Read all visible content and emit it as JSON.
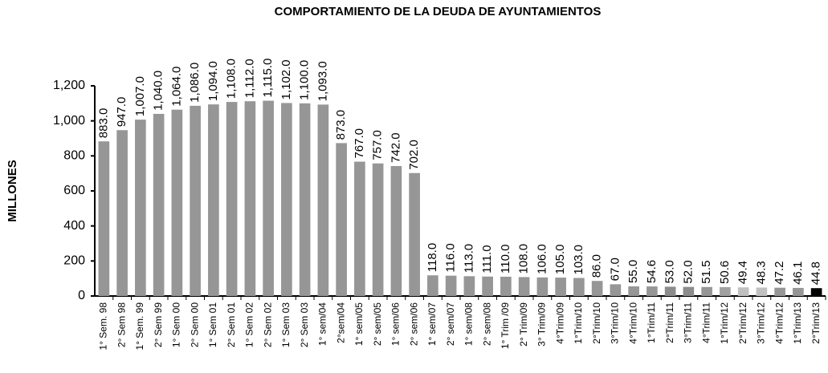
{
  "chart_data": {
    "type": "bar",
    "title": "COMPORTAMIENTO DE LA DEUDA DE AYUNTAMIENTOS",
    "y_label": "MILLONES",
    "categories": [
      "1° Sem. 98",
      "2° Sem 98",
      "1° Sem. 99",
      "2° Sem 99",
      "1° Sem 00",
      "2° Sem 00",
      "1° Sem 01",
      "2° Sem 01",
      "1° Sem 02",
      "2° Sem 02",
      "1° Sem 03",
      "2° Sem 03",
      "1° sem/04",
      "2°sem/04",
      "1° sem/05",
      "2° sem/05",
      "1° sem/06",
      "2° sem/06",
      "1° sem/07",
      "2° sem/07",
      "1° sem/08",
      "2° sem/08",
      "1° Trim /09",
      "2° Trim/09",
      "3° Trim/09",
      "4°Trim/09",
      "1°Trim/10",
      "2°Trim/10",
      "3°Trim/10",
      "4°Trim/10",
      "1°Trim/11",
      "2°Trim/11",
      "3°Trim/11",
      "4°Trim/11",
      "1°Trim/12",
      "2°Trim/12",
      "3°Trim/12",
      "4°Trim/12",
      "1°Trim/13",
      "2°Trim/13"
    ],
    "values": [
      883,
      947,
      1007,
      1040,
      1064,
      1086,
      1094,
      1108,
      1112,
      1115,
      1102,
      1100,
      1093,
      873,
      767,
      757,
      742,
      702,
      118,
      116,
      113,
      111,
      110,
      108,
      106,
      105,
      103,
      86,
      67,
      55,
      54.6,
      53,
      52,
      51.5,
      50.6,
      49.4,
      48.3,
      47.2,
      46.1,
      44.8
    ],
    "value_labels": [
      "883.0",
      "947.0",
      "1,007.0",
      "1,040.0",
      "1,064.0",
      "1,086.0",
      "1,094.0",
      "1,108.0",
      "1,112.0",
      "1,115.0",
      "1,102.0",
      "1,100.0",
      "1,093.0",
      "873.0",
      "767.0",
      "757.0",
      "742.0",
      "702.0",
      "118.0",
      "116.0",
      "113.0",
      "111.0",
      "110.0",
      "108.0",
      "106.0",
      "105.0",
      "103.0",
      "86.0",
      "67.0",
      "55.0",
      "54.6",
      "53.0",
      "52.0",
      "51.5",
      "50.6",
      "49.4",
      "48.3",
      "47.2",
      "46.1",
      "44.8"
    ],
    "colors": [
      "#969696",
      "#969696",
      "#969696",
      "#969696",
      "#969696",
      "#969696",
      "#969696",
      "#969696",
      "#969696",
      "#969696",
      "#969696",
      "#969696",
      "#969696",
      "#969696",
      "#969696",
      "#969696",
      "#969696",
      "#969696",
      "#969696",
      "#969696",
      "#969696",
      "#969696",
      "#969696",
      "#969696",
      "#969696",
      "#969696",
      "#969696",
      "#969696",
      "#969696",
      "#969696",
      "#969696",
      "#8c8c8c",
      "#8c8c8c",
      "#969696",
      "#a0a0a0",
      "#c0c0c0",
      "#c0c0c0",
      "#969696",
      "#969696",
      "#000000"
    ],
    "ylim": [
      0,
      1200
    ],
    "yticks": [
      0,
      200,
      400,
      600,
      800,
      {
        "value": 1000,
        "label": "1,000"
      },
      {
        "value": 1200,
        "label": "1,200"
      }
    ]
  }
}
